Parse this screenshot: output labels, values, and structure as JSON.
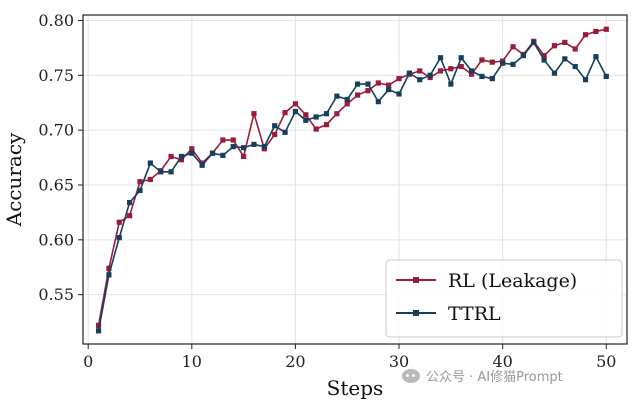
{
  "chart_data": {
    "type": "line",
    "title": "",
    "xlabel": "Steps",
    "ylabel": "Accuracy",
    "xlim": [
      -0.5,
      52
    ],
    "ylim": [
      0.505,
      0.805
    ],
    "xticks": [
      0,
      10,
      20,
      30,
      40,
      50
    ],
    "yticks": [
      0.55,
      0.6,
      0.65,
      0.7,
      0.75,
      0.8
    ],
    "grid": true,
    "legend_position": "lower-right",
    "x": [
      1,
      2,
      3,
      4,
      5,
      6,
      7,
      8,
      9,
      10,
      11,
      12,
      13,
      14,
      15,
      16,
      17,
      18,
      19,
      20,
      21,
      22,
      23,
      24,
      25,
      26,
      27,
      28,
      29,
      30,
      31,
      32,
      33,
      34,
      35,
      36,
      37,
      38,
      39,
      40,
      41,
      42,
      43,
      44,
      45,
      46,
      47,
      48,
      49,
      50
    ],
    "series": [
      {
        "name": "RL (Leakage)",
        "color": "#9b1c3a",
        "values": [
          0.522,
          0.574,
          0.616,
          0.622,
          0.653,
          0.655,
          0.663,
          0.676,
          0.673,
          0.683,
          0.67,
          0.679,
          0.691,
          0.691,
          0.676,
          0.715,
          0.683,
          0.696,
          0.716,
          0.724,
          0.714,
          0.701,
          0.705,
          0.715,
          0.724,
          0.732,
          0.736,
          0.743,
          0.741,
          0.747,
          0.751,
          0.754,
          0.748,
          0.754,
          0.756,
          0.758,
          0.751,
          0.764,
          0.762,
          0.763,
          0.776,
          0.769,
          0.781,
          0.768,
          0.777,
          0.78,
          0.774,
          0.787,
          0.79,
          0.792
        ]
      },
      {
        "name": "TTRL",
        "color": "#163f5e",
        "values": [
          0.517,
          0.568,
          0.602,
          0.634,
          0.645,
          0.67,
          0.662,
          0.662,
          0.676,
          0.679,
          0.668,
          0.679,
          0.677,
          0.685,
          0.684,
          0.687,
          0.685,
          0.704,
          0.698,
          0.717,
          0.709,
          0.712,
          0.715,
          0.731,
          0.728,
          0.742,
          0.742,
          0.726,
          0.737,
          0.733,
          0.752,
          0.746,
          0.75,
          0.766,
          0.742,
          0.766,
          0.754,
          0.749,
          0.747,
          0.761,
          0.76,
          0.768,
          0.78,
          0.764,
          0.752,
          0.765,
          0.758,
          0.746,
          0.767,
          0.749
        ]
      }
    ]
  },
  "watermark": {
    "text": "公众号 · AI修猫Prompt"
  }
}
